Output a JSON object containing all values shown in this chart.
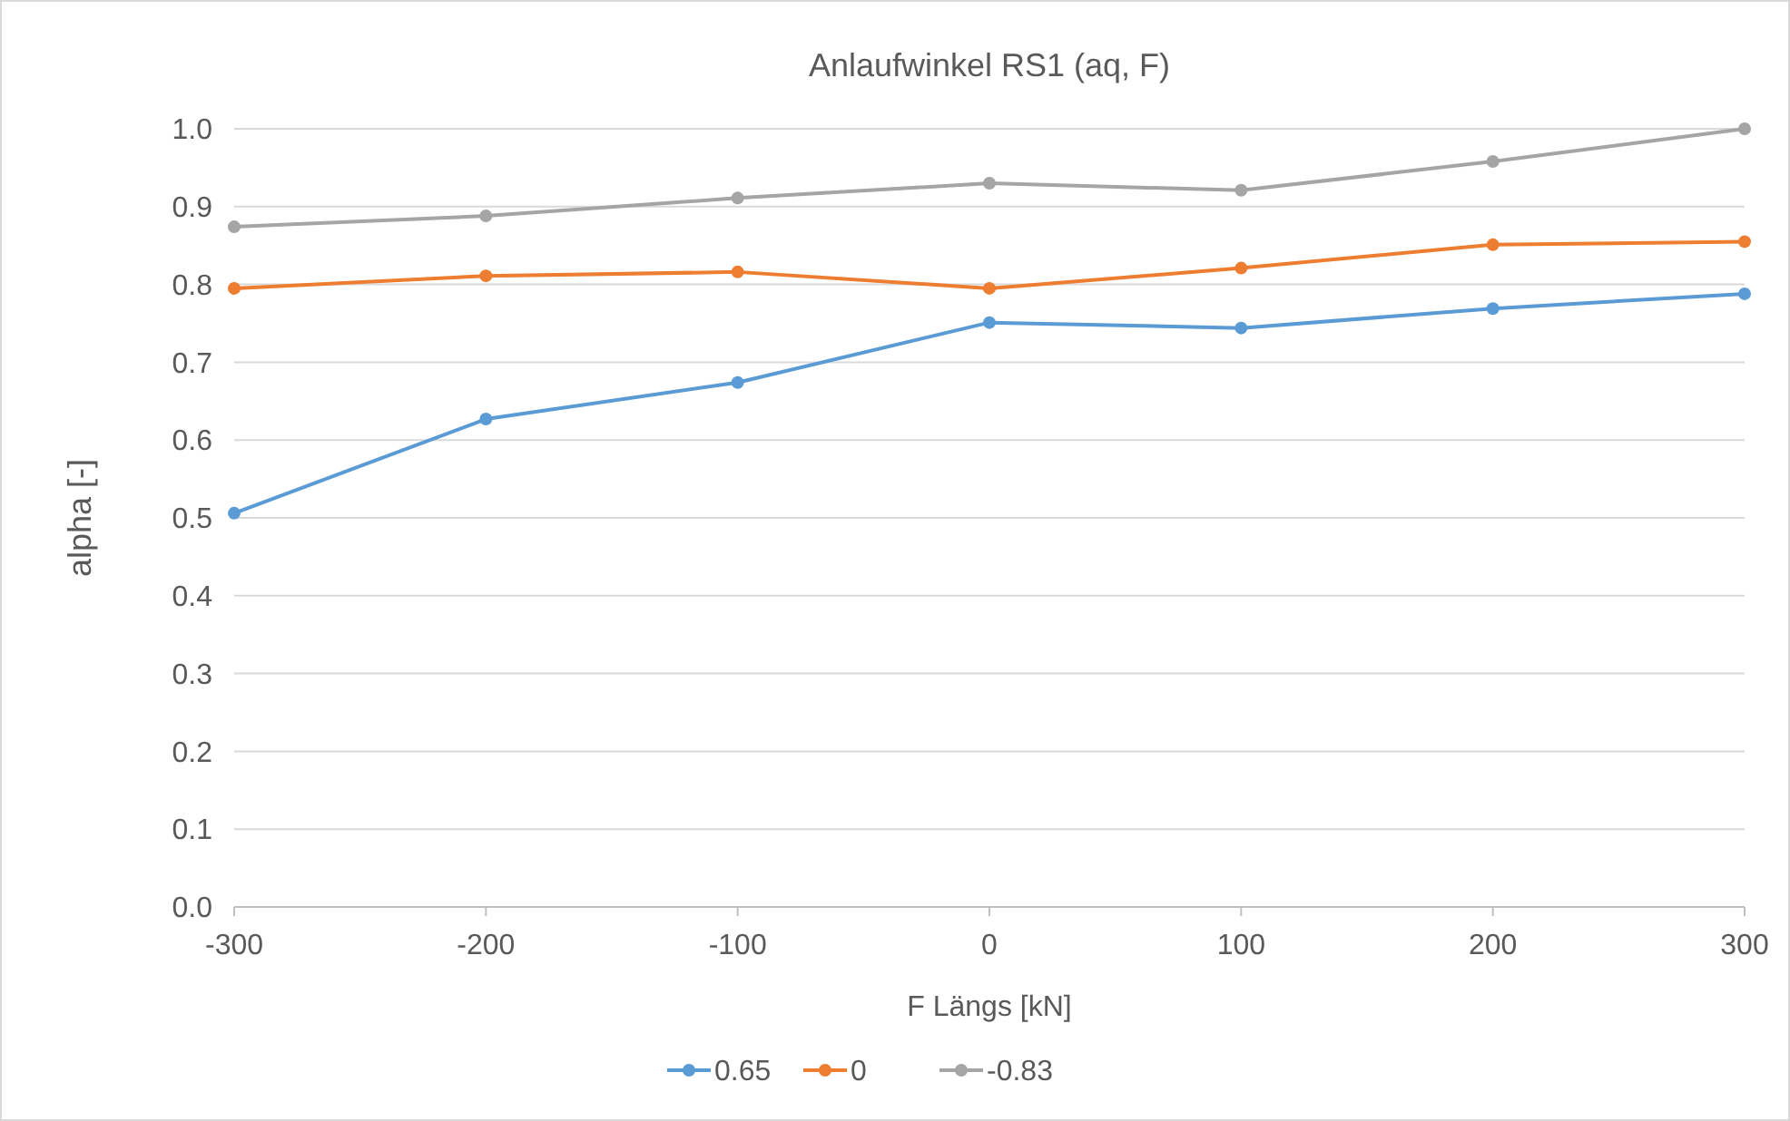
{
  "chart_data": {
    "type": "line",
    "title": "Anlaufwinkel RS1 (aq, F)",
    "xlabel": "F Längs [kN]",
    "ylabel": "alpha [-]",
    "x": [
      -300,
      -200,
      -100,
      0,
      100,
      200,
      300
    ],
    "series": [
      {
        "name": "0.65",
        "color": "#5b9bd5",
        "values": [
          0.506,
          0.627,
          0.674,
          0.751,
          0.744,
          0.769,
          0.788
        ]
      },
      {
        "name": "0",
        "color": "#ed7d31",
        "values": [
          0.795,
          0.811,
          0.816,
          0.795,
          0.821,
          0.851,
          0.855
        ]
      },
      {
        "name": "-0.83",
        "color": "#a5a5a5",
        "values": [
          0.874,
          0.888,
          0.911,
          0.93,
          0.921,
          0.958,
          1.0
        ]
      }
    ],
    "xlim": [
      -300,
      300
    ],
    "xticks": [
      -300,
      -200,
      -100,
      0,
      100,
      200,
      300
    ],
    "ylim": [
      0,
      1
    ],
    "yticks": [
      {
        "value": 0,
        "label": "0.0"
      },
      {
        "value": 0.1,
        "label": "0.1"
      },
      {
        "value": 0.2,
        "label": "0.2"
      },
      {
        "value": 0.3,
        "label": "0.3"
      },
      {
        "value": 0.4,
        "label": "0.4"
      },
      {
        "value": 0.5,
        "label": "0.5"
      },
      {
        "value": 0.6,
        "label": "0.6"
      },
      {
        "value": 0.7,
        "label": "0.7"
      },
      {
        "value": 0.8,
        "label": "0.8"
      },
      {
        "value": 0.9,
        "label": "0.9"
      },
      {
        "value": 1,
        "label": "1.0"
      }
    ],
    "grid": "y",
    "legend": "bottom",
    "marker": "circle",
    "line_style": "solid"
  }
}
